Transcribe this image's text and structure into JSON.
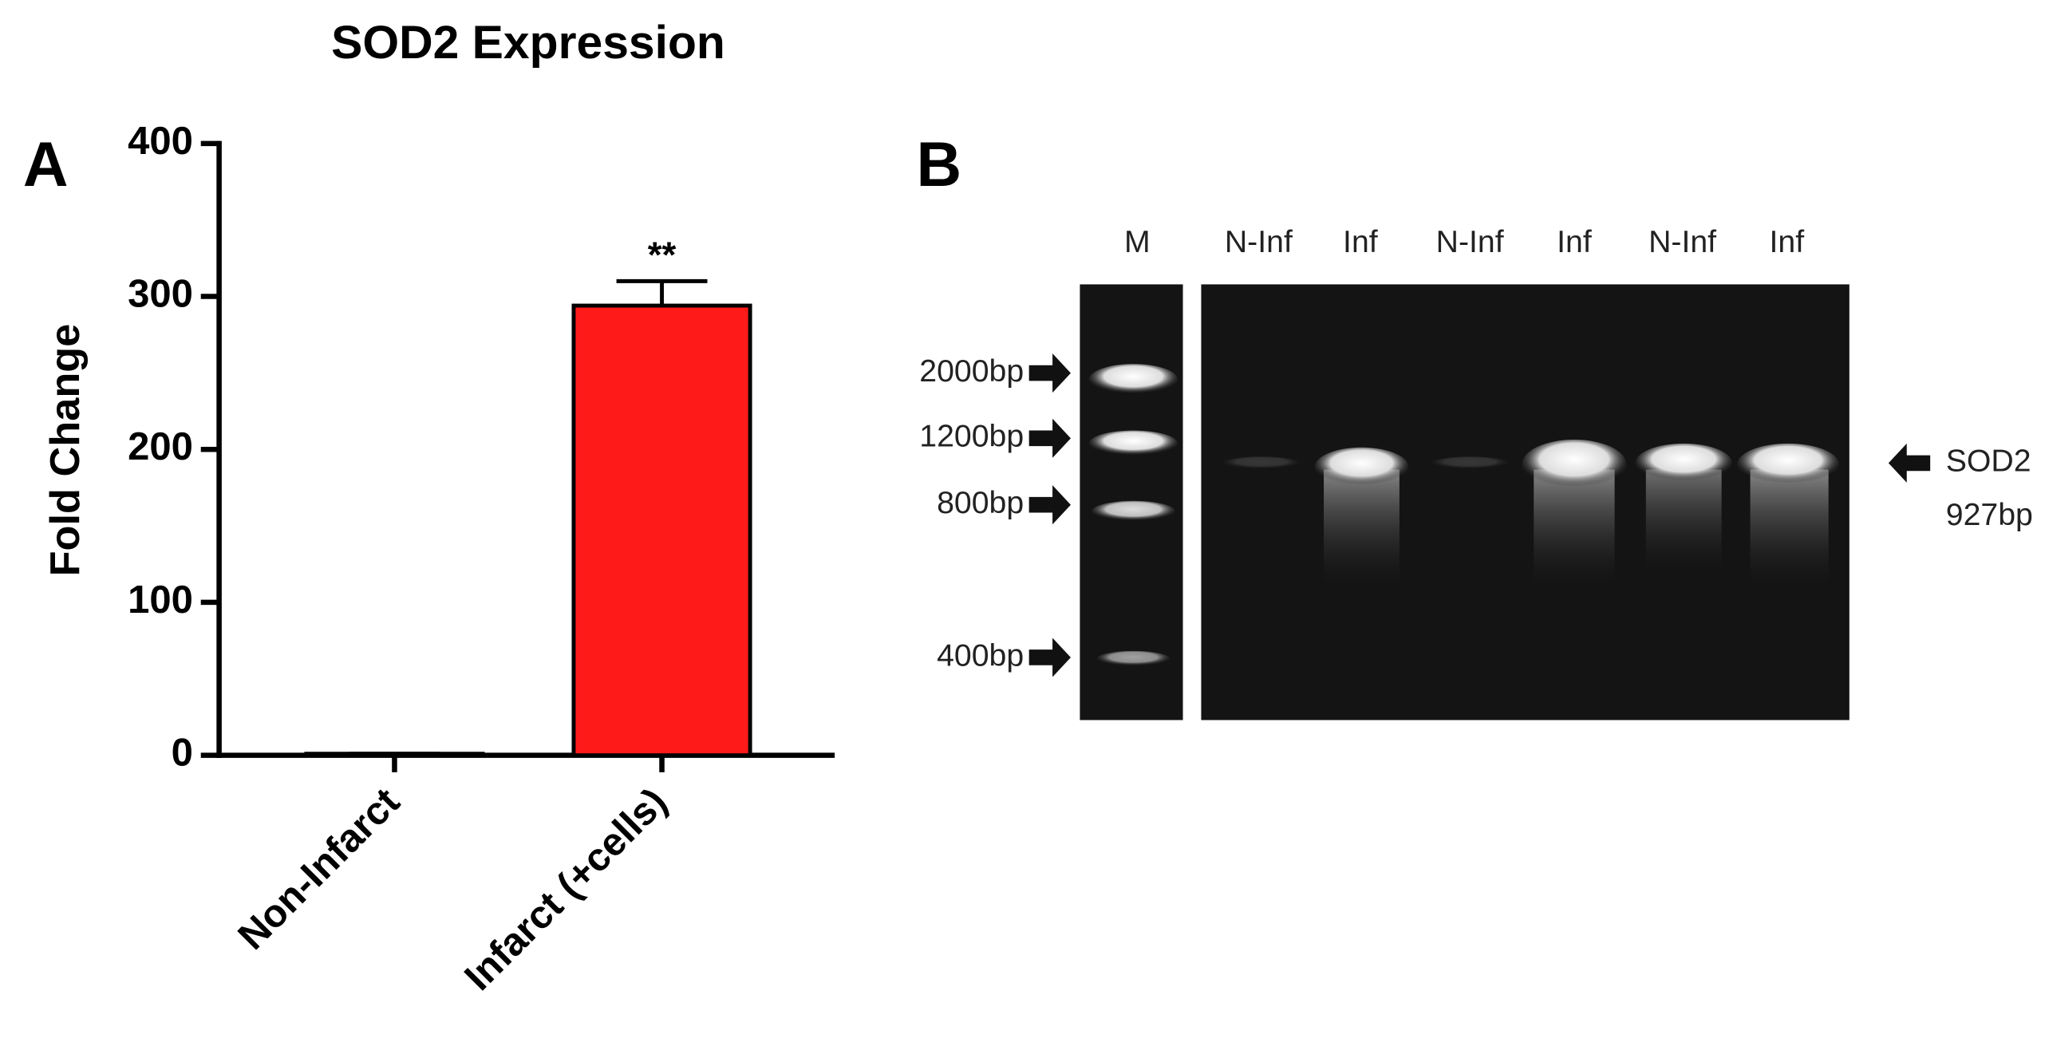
{
  "chart_data": {
    "type": "bar",
    "title": "SOD2 Expression",
    "y_label": "Fold Change",
    "categories": [
      "Non-Infarct",
      "Infarct (+cells)"
    ],
    "values": [
      1,
      294
    ],
    "errors": [
      0,
      16
    ],
    "value_annotations": [
      null,
      "**"
    ],
    "color": "#ff1a1a",
    "ylim": [
      0,
      400
    ],
    "yticks": [
      0,
      100,
      200,
      300,
      400
    ],
    "grid": false
  },
  "panel_labels": [
    "A",
    "B"
  ],
  "gel": {
    "lanes": [
      "M",
      "N-Inf",
      "Inf",
      "N-Inf",
      "Inf",
      "N-Inf",
      "Inf"
    ],
    "markers": [
      "2000bp",
      "1200bp",
      "800bp",
      "400bp"
    ],
    "band_name": "SOD2",
    "band_size": "927bp"
  }
}
